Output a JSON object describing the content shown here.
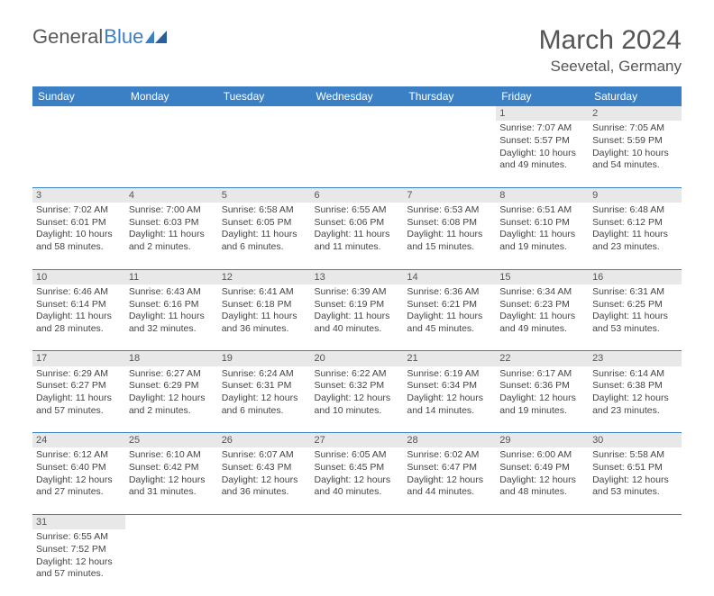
{
  "brand": {
    "part1": "General",
    "part2": "Blue"
  },
  "title": {
    "month": "March 2024",
    "location": "Seevetal, Germany"
  },
  "colors": {
    "headerBg": "#3b7fc4",
    "dayBg": "#e8e8e8",
    "text": "#444444",
    "border": "#3b7fc4"
  },
  "dayHeaders": [
    "Sunday",
    "Monday",
    "Tuesday",
    "Wednesday",
    "Thursday",
    "Friday",
    "Saturday"
  ],
  "weeks": [
    [
      null,
      null,
      null,
      null,
      null,
      {
        "n": "1",
        "sunrise": "Sunrise: 7:07 AM",
        "sunset": "Sunset: 5:57 PM",
        "day1": "Daylight: 10 hours",
        "day2": "and 49 minutes."
      },
      {
        "n": "2",
        "sunrise": "Sunrise: 7:05 AM",
        "sunset": "Sunset: 5:59 PM",
        "day1": "Daylight: 10 hours",
        "day2": "and 54 minutes."
      }
    ],
    [
      {
        "n": "3",
        "sunrise": "Sunrise: 7:02 AM",
        "sunset": "Sunset: 6:01 PM",
        "day1": "Daylight: 10 hours",
        "day2": "and 58 minutes."
      },
      {
        "n": "4",
        "sunrise": "Sunrise: 7:00 AM",
        "sunset": "Sunset: 6:03 PM",
        "day1": "Daylight: 11 hours",
        "day2": "and 2 minutes."
      },
      {
        "n": "5",
        "sunrise": "Sunrise: 6:58 AM",
        "sunset": "Sunset: 6:05 PM",
        "day1": "Daylight: 11 hours",
        "day2": "and 6 minutes."
      },
      {
        "n": "6",
        "sunrise": "Sunrise: 6:55 AM",
        "sunset": "Sunset: 6:06 PM",
        "day1": "Daylight: 11 hours",
        "day2": "and 11 minutes."
      },
      {
        "n": "7",
        "sunrise": "Sunrise: 6:53 AM",
        "sunset": "Sunset: 6:08 PM",
        "day1": "Daylight: 11 hours",
        "day2": "and 15 minutes."
      },
      {
        "n": "8",
        "sunrise": "Sunrise: 6:51 AM",
        "sunset": "Sunset: 6:10 PM",
        "day1": "Daylight: 11 hours",
        "day2": "and 19 minutes."
      },
      {
        "n": "9",
        "sunrise": "Sunrise: 6:48 AM",
        "sunset": "Sunset: 6:12 PM",
        "day1": "Daylight: 11 hours",
        "day2": "and 23 minutes."
      }
    ],
    [
      {
        "n": "10",
        "sunrise": "Sunrise: 6:46 AM",
        "sunset": "Sunset: 6:14 PM",
        "day1": "Daylight: 11 hours",
        "day2": "and 28 minutes."
      },
      {
        "n": "11",
        "sunrise": "Sunrise: 6:43 AM",
        "sunset": "Sunset: 6:16 PM",
        "day1": "Daylight: 11 hours",
        "day2": "and 32 minutes."
      },
      {
        "n": "12",
        "sunrise": "Sunrise: 6:41 AM",
        "sunset": "Sunset: 6:18 PM",
        "day1": "Daylight: 11 hours",
        "day2": "and 36 minutes."
      },
      {
        "n": "13",
        "sunrise": "Sunrise: 6:39 AM",
        "sunset": "Sunset: 6:19 PM",
        "day1": "Daylight: 11 hours",
        "day2": "and 40 minutes."
      },
      {
        "n": "14",
        "sunrise": "Sunrise: 6:36 AM",
        "sunset": "Sunset: 6:21 PM",
        "day1": "Daylight: 11 hours",
        "day2": "and 45 minutes."
      },
      {
        "n": "15",
        "sunrise": "Sunrise: 6:34 AM",
        "sunset": "Sunset: 6:23 PM",
        "day1": "Daylight: 11 hours",
        "day2": "and 49 minutes."
      },
      {
        "n": "16",
        "sunrise": "Sunrise: 6:31 AM",
        "sunset": "Sunset: 6:25 PM",
        "day1": "Daylight: 11 hours",
        "day2": "and 53 minutes."
      }
    ],
    [
      {
        "n": "17",
        "sunrise": "Sunrise: 6:29 AM",
        "sunset": "Sunset: 6:27 PM",
        "day1": "Daylight: 11 hours",
        "day2": "and 57 minutes."
      },
      {
        "n": "18",
        "sunrise": "Sunrise: 6:27 AM",
        "sunset": "Sunset: 6:29 PM",
        "day1": "Daylight: 12 hours",
        "day2": "and 2 minutes."
      },
      {
        "n": "19",
        "sunrise": "Sunrise: 6:24 AM",
        "sunset": "Sunset: 6:31 PM",
        "day1": "Daylight: 12 hours",
        "day2": "and 6 minutes."
      },
      {
        "n": "20",
        "sunrise": "Sunrise: 6:22 AM",
        "sunset": "Sunset: 6:32 PM",
        "day1": "Daylight: 12 hours",
        "day2": "and 10 minutes."
      },
      {
        "n": "21",
        "sunrise": "Sunrise: 6:19 AM",
        "sunset": "Sunset: 6:34 PM",
        "day1": "Daylight: 12 hours",
        "day2": "and 14 minutes."
      },
      {
        "n": "22",
        "sunrise": "Sunrise: 6:17 AM",
        "sunset": "Sunset: 6:36 PM",
        "day1": "Daylight: 12 hours",
        "day2": "and 19 minutes."
      },
      {
        "n": "23",
        "sunrise": "Sunrise: 6:14 AM",
        "sunset": "Sunset: 6:38 PM",
        "day1": "Daylight: 12 hours",
        "day2": "and 23 minutes."
      }
    ],
    [
      {
        "n": "24",
        "sunrise": "Sunrise: 6:12 AM",
        "sunset": "Sunset: 6:40 PM",
        "day1": "Daylight: 12 hours",
        "day2": "and 27 minutes."
      },
      {
        "n": "25",
        "sunrise": "Sunrise: 6:10 AM",
        "sunset": "Sunset: 6:42 PM",
        "day1": "Daylight: 12 hours",
        "day2": "and 31 minutes."
      },
      {
        "n": "26",
        "sunrise": "Sunrise: 6:07 AM",
        "sunset": "Sunset: 6:43 PM",
        "day1": "Daylight: 12 hours",
        "day2": "and 36 minutes."
      },
      {
        "n": "27",
        "sunrise": "Sunrise: 6:05 AM",
        "sunset": "Sunset: 6:45 PM",
        "day1": "Daylight: 12 hours",
        "day2": "and 40 minutes."
      },
      {
        "n": "28",
        "sunrise": "Sunrise: 6:02 AM",
        "sunset": "Sunset: 6:47 PM",
        "day1": "Daylight: 12 hours",
        "day2": "and 44 minutes."
      },
      {
        "n": "29",
        "sunrise": "Sunrise: 6:00 AM",
        "sunset": "Sunset: 6:49 PM",
        "day1": "Daylight: 12 hours",
        "day2": "and 48 minutes."
      },
      {
        "n": "30",
        "sunrise": "Sunrise: 5:58 AM",
        "sunset": "Sunset: 6:51 PM",
        "day1": "Daylight: 12 hours",
        "day2": "and 53 minutes."
      }
    ],
    [
      {
        "n": "31",
        "sunrise": "Sunrise: 6:55 AM",
        "sunset": "Sunset: 7:52 PM",
        "day1": "Daylight: 12 hours",
        "day2": "and 57 minutes."
      },
      null,
      null,
      null,
      null,
      null,
      null
    ]
  ]
}
